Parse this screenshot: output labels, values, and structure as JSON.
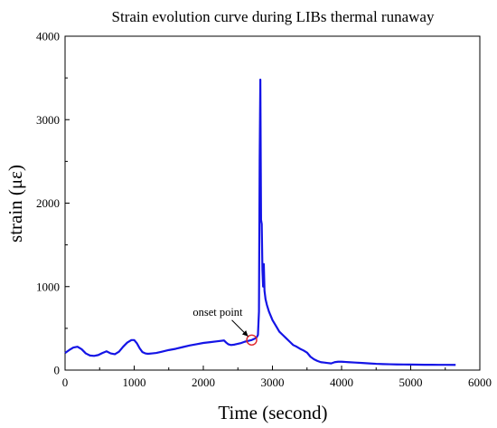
{
  "chart_data": {
    "type": "line",
    "title": "Strain evolution curve during LIBs thermal runaway",
    "xlabel": "Time (second)",
    "ylabel": "strain (με)",
    "xlim": [
      0,
      6000
    ],
    "ylim": [
      0,
      4000
    ],
    "xticks": [
      0,
      1000,
      2000,
      3000,
      4000,
      5000,
      6000
    ],
    "yticks": [
      0,
      1000,
      2000,
      3000,
      4000
    ],
    "grid": false,
    "legend": "none",
    "line_color": "#1414e6",
    "annotation": {
      "text": "onset point",
      "x": 2700,
      "y": 360,
      "marker_color": "#e0242a"
    },
    "series": [
      {
        "x": [
          0,
          60,
          120,
          180,
          240,
          300,
          360,
          420,
          480,
          540,
          600,
          660,
          720,
          780,
          840,
          900,
          960,
          1000,
          1040,
          1080,
          1120,
          1160,
          1200,
          1260,
          1320,
          1400,
          1500,
          1600,
          1700,
          1800,
          1900,
          2000,
          2100,
          2200,
          2300,
          2330,
          2360,
          2400,
          2450,
          2500,
          2550,
          2600,
          2650,
          2700,
          2740,
          2770,
          2790,
          2805,
          2815,
          2825,
          2835,
          2845,
          2855,
          2865,
          2875,
          2885,
          2900,
          2920,
          2950,
          2980,
          3000,
          3050,
          3100,
          3150,
          3200,
          3250,
          3300,
          3350,
          3400,
          3450,
          3500,
          3550,
          3600,
          3650,
          3700,
          3750,
          3800,
          3850,
          3900,
          3950,
          4000,
          4100,
          4200,
          4300,
          4400,
          4500,
          4600,
          4700,
          4800,
          4900,
          5000,
          5100,
          5200,
          5300,
          5400,
          5500,
          5650
        ],
        "y": [
          205,
          240,
          270,
          280,
          250,
          200,
          175,
          170,
          180,
          205,
          225,
          200,
          190,
          220,
          280,
          330,
          360,
          360,
          320,
          260,
          215,
          200,
          195,
          200,
          205,
          220,
          240,
          255,
          275,
          295,
          310,
          325,
          335,
          345,
          355,
          330,
          310,
          300,
          305,
          315,
          325,
          340,
          350,
          360,
          375,
          390,
          420,
          700,
          2500,
          3480,
          1800,
          1750,
          1200,
          1000,
          1270,
          950,
          850,
          780,
          700,
          640,
          600,
          530,
          460,
          420,
          380,
          340,
          300,
          280,
          255,
          235,
          210,
          160,
          130,
          110,
          95,
          90,
          85,
          80,
          95,
          100,
          100,
          95,
          90,
          85,
          80,
          75,
          72,
          70,
          68,
          67,
          66,
          65,
          64,
          64,
          63,
          63,
          62
        ]
      }
    ]
  }
}
